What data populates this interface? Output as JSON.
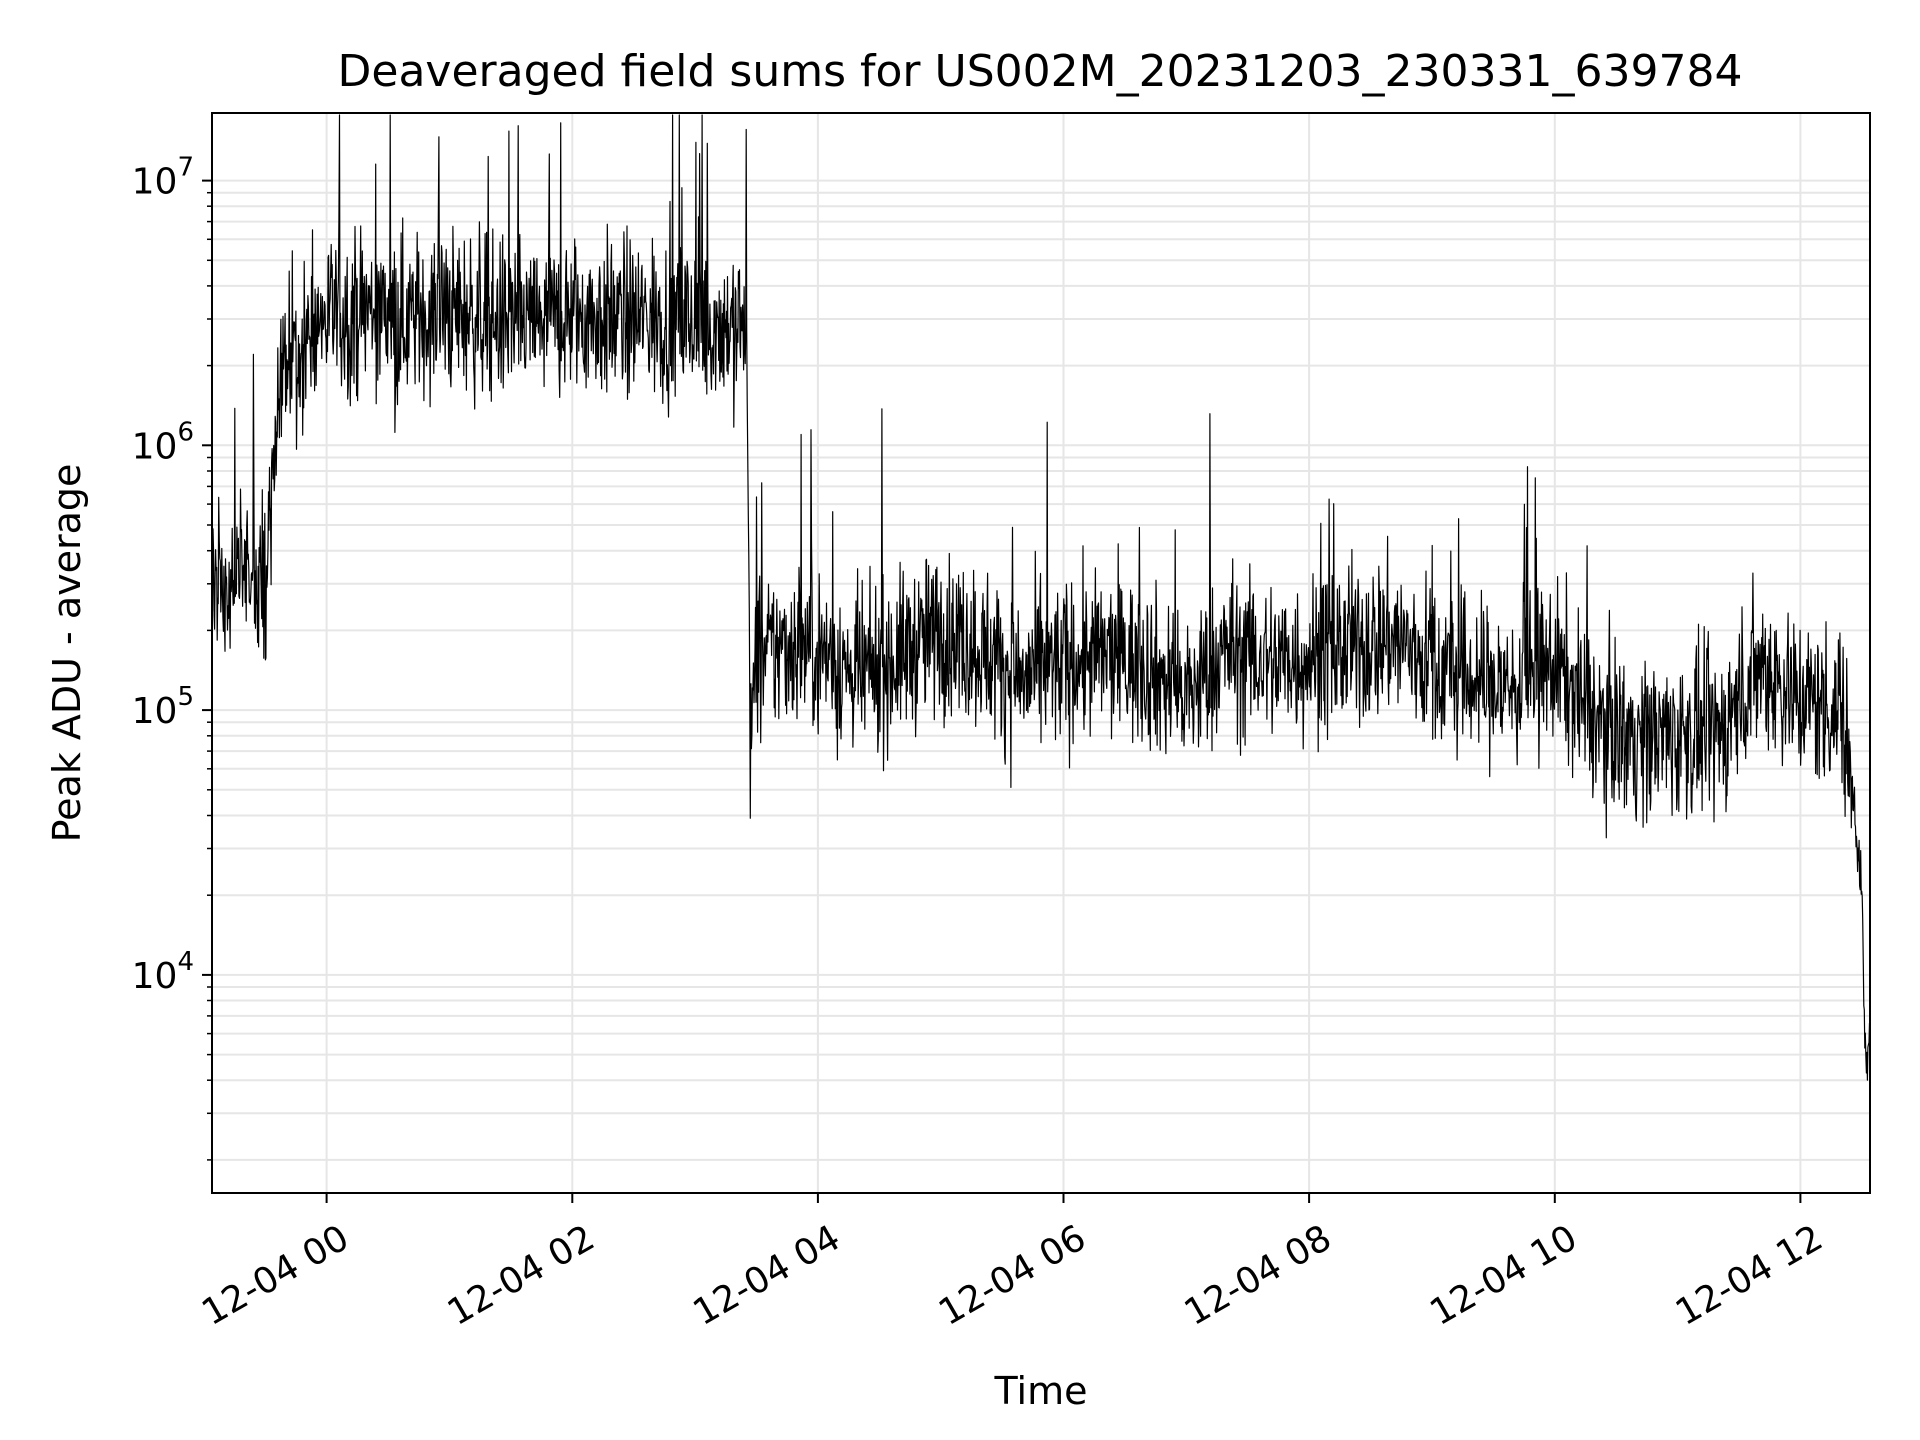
{
  "chart_data": {
    "type": "line",
    "title": "Deaveraged field sums for US002M_20231203_230331_639784",
    "xlabel": "Time",
    "ylabel": "Peak ADU - average",
    "yscale": "log",
    "grid": true,
    "legend": "none",
    "xlim": [
      "2023-12-03 23:04",
      "2023-12-04 12:34"
    ],
    "ylim": [
      1500,
      18000000
    ],
    "x_ticks": [
      {
        "value": "2023-12-04 00:00",
        "label": "12-04 00"
      },
      {
        "value": "2023-12-04 02:00",
        "label": "12-04 02"
      },
      {
        "value": "2023-12-04 04:00",
        "label": "12-04 04"
      },
      {
        "value": "2023-12-04 06:00",
        "label": "12-04 06"
      },
      {
        "value": "2023-12-04 08:00",
        "label": "12-04 08"
      },
      {
        "value": "2023-12-04 10:00",
        "label": "12-04 10"
      },
      {
        "value": "2023-12-04 12:00",
        "label": "12-04 12"
      }
    ],
    "y_ticks": [
      {
        "value": 10000,
        "base": "10",
        "exp": "4"
      },
      {
        "value": 100000,
        "base": "10",
        "exp": "5"
      },
      {
        "value": 1000000,
        "base": "10",
        "exp": "6"
      },
      {
        "value": 10000000,
        "base": "10",
        "exp": "7"
      }
    ],
    "series": [
      {
        "color": "#000000",
        "x": [
          "2023-12-03 23:04",
          "2023-12-03 23:10",
          "2023-12-03 23:20",
          "2023-12-03 23:30",
          "2023-12-03 23:35",
          "2023-12-03 23:40",
          "2023-12-03 23:50",
          "2023-12-04 00:00",
          "2023-12-04 00:20",
          "2023-12-04 00:40",
          "2023-12-04 01:00",
          "2023-12-04 01:20",
          "2023-12-04 01:40",
          "2023-12-04 02:00",
          "2023-12-04 02:20",
          "2023-12-04 02:40",
          "2023-12-04 03:00",
          "2023-12-04 03:20",
          "2023-12-04 03:25",
          "2023-12-04 03:27",
          "2023-12-04 03:30",
          "2023-12-04 03:40",
          "2023-12-04 03:50",
          "2023-12-04 04:00",
          "2023-12-04 04:20",
          "2023-12-04 04:40",
          "2023-12-04 05:00",
          "2023-12-04 05:20",
          "2023-12-04 05:40",
          "2023-12-04 06:00",
          "2023-12-04 06:20",
          "2023-12-04 06:40",
          "2023-12-04 07:00",
          "2023-12-04 07:20",
          "2023-12-04 07:40",
          "2023-12-04 08:00",
          "2023-12-04 08:20",
          "2023-12-04 08:40",
          "2023-12-04 09:00",
          "2023-12-04 09:20",
          "2023-12-04 09:40",
          "2023-12-04 10:00",
          "2023-12-04 10:20",
          "2023-12-04 10:40",
          "2023-12-04 11:00",
          "2023-12-04 11:20",
          "2023-12-04 11:40",
          "2023-12-04 12:00",
          "2023-12-04 12:20",
          "2023-12-04 12:26",
          "2023-12-04 12:30",
          "2023-12-04 12:32",
          "2023-12-04 12:34"
        ],
        "y": [
          350000,
          300000,
          350000,
          300000,
          1000000,
          2000000,
          2500000,
          3000000,
          3300000,
          3000000,
          3200000,
          3000000,
          2900000,
          3100000,
          3000000,
          3000000,
          2900000,
          2800000,
          2900000,
          80000,
          150000,
          170000,
          180000,
          170000,
          130000,
          160000,
          200000,
          170000,
          130000,
          150000,
          160000,
          150000,
          110000,
          170000,
          150000,
          160000,
          170000,
          190000,
          150000,
          130000,
          120000,
          150000,
          90000,
          80000,
          80000,
          80000,
          150000,
          110000,
          100000,
          50000,
          20000,
          4000,
          6000
        ]
      }
    ]
  }
}
